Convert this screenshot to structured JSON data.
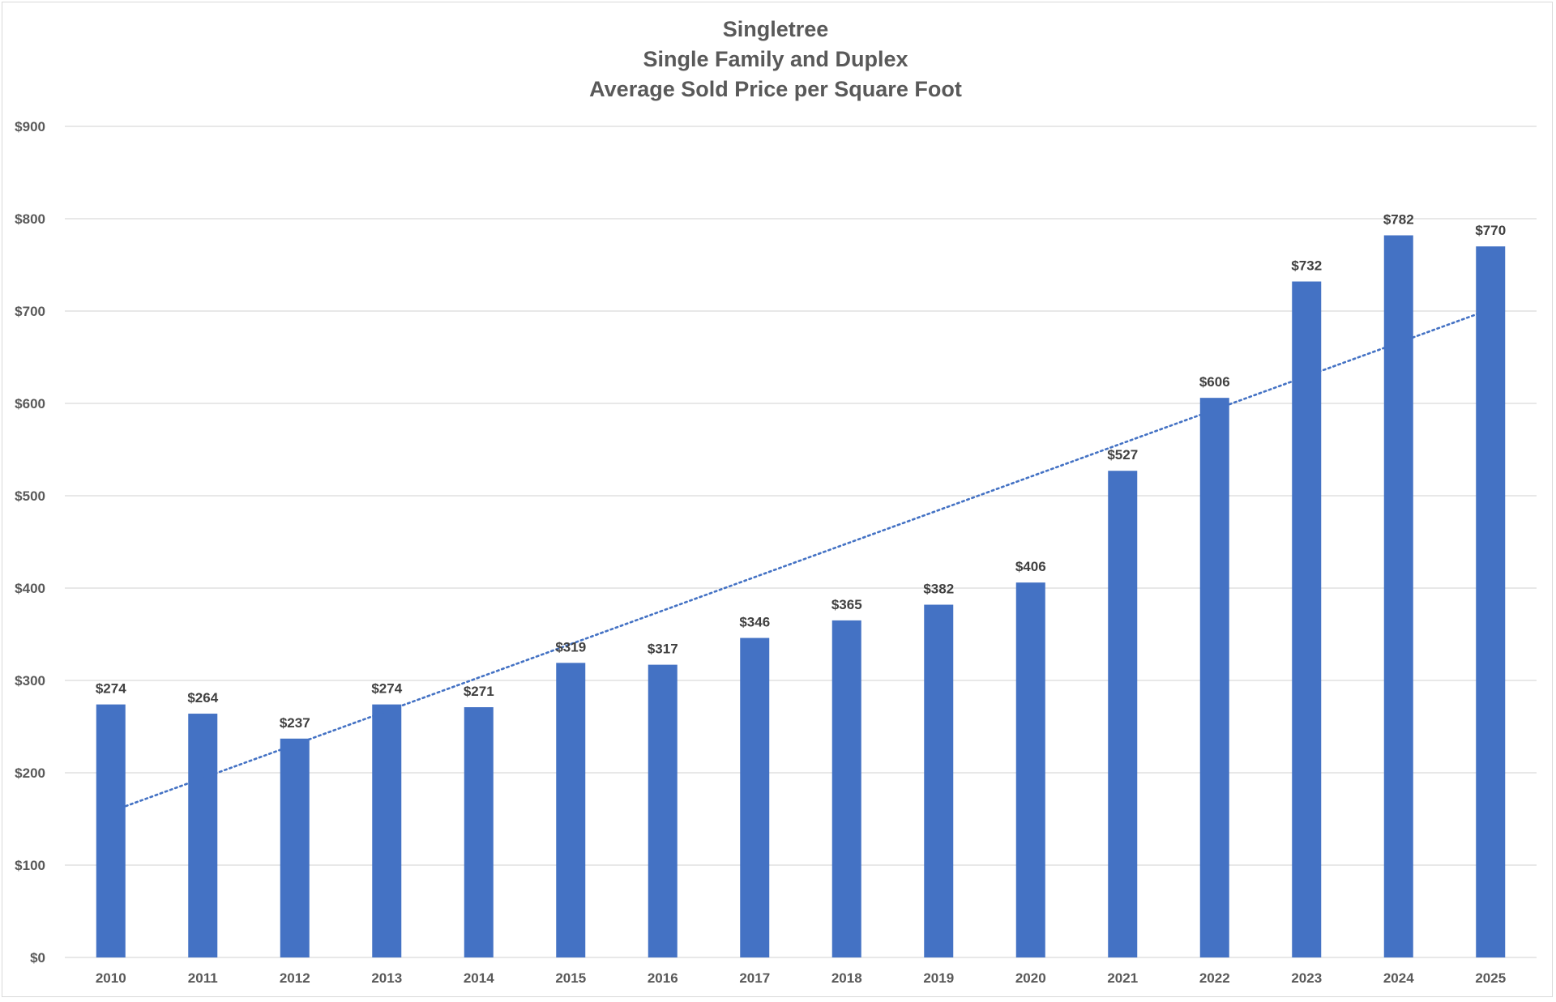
{
  "chart_data": {
    "type": "bar",
    "title_lines": [
      "Singletree",
      "Single Family and Duplex",
      "Average Sold Price per Square Foot"
    ],
    "categories": [
      "2010",
      "2011",
      "2012",
      "2013",
      "2014",
      "2015",
      "2016",
      "2017",
      "2018",
      "2019",
      "2020",
      "2021",
      "2022",
      "2023",
      "2024",
      "2025"
    ],
    "values": [
      274,
      264,
      237,
      274,
      271,
      319,
      317,
      346,
      365,
      382,
      406,
      527,
      606,
      732,
      782,
      770
    ],
    "data_labels": [
      "$274",
      "$264",
      "$237",
      "$274",
      "$271",
      "$319",
      "$317",
      "$346",
      "$365",
      "$382",
      "$406",
      "$527",
      "$606",
      "$732",
      "$782",
      "$770"
    ],
    "yticks": [
      0,
      100,
      200,
      300,
      400,
      500,
      600,
      700,
      800,
      900
    ],
    "ytick_labels": [
      "$0",
      "$100",
      "$200",
      "$300",
      "$400",
      "$500",
      "$600",
      "$700",
      "$800",
      "$900"
    ],
    "ylim": [
      0,
      900
    ],
    "xlabel": "",
    "ylabel": "",
    "grid": true,
    "legend": "none",
    "trendline": {
      "type": "linear",
      "style": "dotted",
      "start_value": 158,
      "end_value": 702
    },
    "colors": {
      "bar": "#4472C4",
      "trendline": "#4472C4",
      "grid": "#d9d9d9",
      "text": "#595959"
    }
  }
}
